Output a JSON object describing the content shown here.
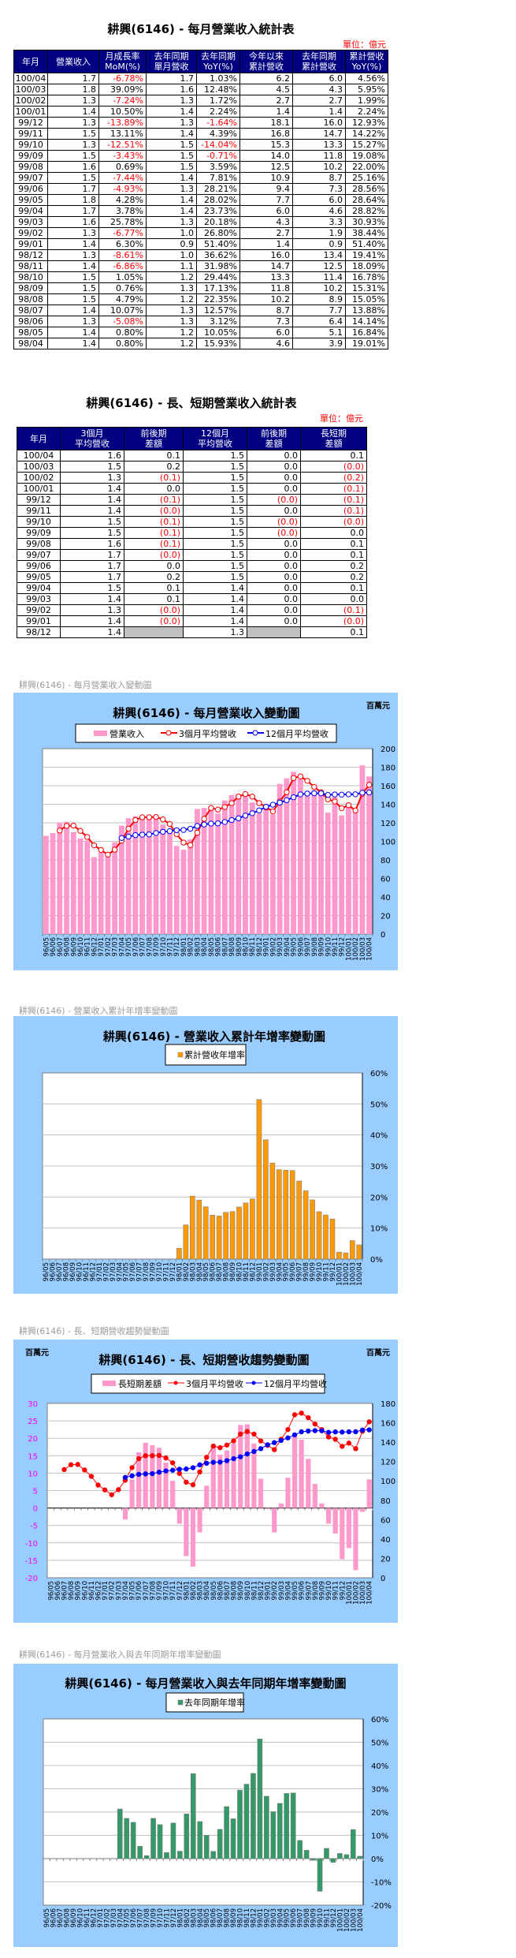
{
  "table1": {
    "title": "耕興(6146) - 每月營業收入統計表",
    "unit": "單位：億元",
    "headers": [
      [
        "年月",
        ""
      ],
      [
        "營業收入",
        ""
      ],
      [
        "月成長率",
        "MoM(%)"
      ],
      [
        "去年同期",
        "單月營收"
      ],
      [
        "去年同期",
        "YoY(%)"
      ],
      [
        "今年以來",
        "累計營收"
      ],
      [
        "去年同期",
        "累計營收"
      ],
      [
        "累計營收",
        "YoY(%)"
      ]
    ],
    "rows": [
      [
        "100/04",
        "1.7",
        "-6.78%",
        "1.7",
        "1.03%",
        "6.2",
        "6.0",
        "4.56%"
      ],
      [
        "100/03",
        "1.8",
        "39.09%",
        "1.6",
        "12.48%",
        "4.5",
        "4.3",
        "5.95%"
      ],
      [
        "100/02",
        "1.3",
        "-7.24%",
        "1.3",
        "1.72%",
        "2.7",
        "2.7",
        "1.99%"
      ],
      [
        "100/01",
        "1.4",
        "10.50%",
        "1.4",
        "2.24%",
        "1.4",
        "1.4",
        "2.24%"
      ],
      [
        "99/12",
        "1.3",
        "-13.89%",
        "1.3",
        "-1.64%",
        "18.1",
        "16.0",
        "12.93%"
      ],
      [
        "99/11",
        "1.5",
        "13.11%",
        "1.4",
        "4.39%",
        "16.8",
        "14.7",
        "14.22%"
      ],
      [
        "99/10",
        "1.3",
        "-12.51%",
        "1.5",
        "-14.04%",
        "15.3",
        "13.3",
        "15.27%"
      ],
      [
        "99/09",
        "1.5",
        "-3.43%",
        "1.5",
        "-0.71%",
        "14.0",
        "11.8",
        "19.08%"
      ],
      [
        "99/08",
        "1.6",
        "0.69%",
        "1.5",
        "3.59%",
        "12.5",
        "10.2",
        "22.00%"
      ],
      [
        "99/07",
        "1.5",
        "-7.44%",
        "1.4",
        "7.81%",
        "10.9",
        "8.7",
        "25.16%"
      ],
      [
        "99/06",
        "1.7",
        "-4.93%",
        "1.3",
        "28.21%",
        "9.4",
        "7.3",
        "28.56%"
      ],
      [
        "99/05",
        "1.8",
        "4.28%",
        "1.4",
        "28.02%",
        "7.7",
        "6.0",
        "28.64%"
      ],
      [
        "99/04",
        "1.7",
        "3.78%",
        "1.4",
        "23.73%",
        "6.0",
        "4.6",
        "28.82%"
      ],
      [
        "99/03",
        "1.6",
        "25.78%",
        "1.3",
        "20.18%",
        "4.3",
        "3.3",
        "30.93%"
      ],
      [
        "99/02",
        "1.3",
        "-6.77%",
        "1.0",
        "26.80%",
        "2.7",
        "1.9",
        "38.44%"
      ],
      [
        "99/01",
        "1.4",
        "6.30%",
        "0.9",
        "51.40%",
        "1.4",
        "0.9",
        "51.40%"
      ],
      [
        "98/12",
        "1.3",
        "-8.61%",
        "1.0",
        "36.62%",
        "16.0",
        "13.4",
        "19.41%"
      ],
      [
        "98/11",
        "1.4",
        "-6.86%",
        "1.1",
        "31.98%",
        "14.7",
        "12.5",
        "18.09%"
      ],
      [
        "98/10",
        "1.5",
        "1.05%",
        "1.2",
        "29.44%",
        "13.3",
        "11.4",
        "16.78%"
      ],
      [
        "98/09",
        "1.5",
        "0.76%",
        "1.3",
        "17.13%",
        "11.8",
        "10.2",
        "15.31%"
      ],
      [
        "98/08",
        "1.5",
        "4.79%",
        "1.2",
        "22.35%",
        "10.2",
        "8.9",
        "15.05%"
      ],
      [
        "98/07",
        "1.4",
        "10.07%",
        "1.3",
        "12.57%",
        "8.7",
        "7.7",
        "13.88%"
      ],
      [
        "98/06",
        "1.3",
        "-5.08%",
        "1.3",
        "3.12%",
        "7.3",
        "6.4",
        "14.14%"
      ],
      [
        "98/05",
        "1.4",
        "0.80%",
        "1.2",
        "10.05%",
        "6.0",
        "5.1",
        "16.84%"
      ],
      [
        "98/04",
        "1.4",
        "0.80%",
        "1.2",
        "15.93%",
        "4.6",
        "3.9",
        "19.01%"
      ]
    ]
  },
  "table2": {
    "title": "耕興(6146) - 長、短期營業收入統計表",
    "unit": "單位：億元",
    "headers": [
      [
        "年月",
        ""
      ],
      [
        "3個月",
        "平均營收"
      ],
      [
        "前後期",
        "差額"
      ],
      [
        "12個月",
        "平均營收"
      ],
      [
        "前後期",
        "差額"
      ],
      [
        "長短期",
        "差額"
      ]
    ],
    "rows": [
      [
        "100/04",
        "1.6",
        "0.1",
        "1.5",
        "0.0",
        "0.1"
      ],
      [
        "100/03",
        "1.5",
        "0.2",
        "1.5",
        "0.0",
        "(0.0)"
      ],
      [
        "100/02",
        "1.3",
        "(0.1)",
        "1.5",
        "0.0",
        "(0.2)"
      ],
      [
        "100/01",
        "1.4",
        "0.0",
        "1.5",
        "0.0",
        "(0.1)"
      ],
      [
        "99/12",
        "1.4",
        "(0.1)",
        "1.5",
        "(0.0)",
        "(0.1)"
      ],
      [
        "99/11",
        "1.4",
        "(0.0)",
        "1.5",
        "0.0",
        "(0.1)"
      ],
      [
        "99/10",
        "1.5",
        "(0.1)",
        "1.5",
        "(0.0)",
        "(0.0)"
      ],
      [
        "99/09",
        "1.5",
        "(0.1)",
        "1.5",
        "(0.0)",
        "0.0"
      ],
      [
        "99/08",
        "1.6",
        "(0.1)",
        "1.5",
        "0.0",
        "0.1"
      ],
      [
        "99/07",
        "1.7",
        "(0.0)",
        "1.5",
        "0.0",
        "0.1"
      ],
      [
        "99/06",
        "1.7",
        "0.0",
        "1.5",
        "0.0",
        "0.2"
      ],
      [
        "99/05",
        "1.7",
        "0.2",
        "1.5",
        "0.0",
        "0.2"
      ],
      [
        "99/04",
        "1.5",
        "0.1",
        "1.4",
        "0.0",
        "0.1"
      ],
      [
        "99/03",
        "1.4",
        "0.1",
        "1.4",
        "0.0",
        "0.0"
      ],
      [
        "99/02",
        "1.3",
        "(0.0)",
        "1.4",
        "0.0",
        "(0.1)"
      ],
      [
        "99/01",
        "1.4",
        "(0.0)",
        "1.4",
        "0.0",
        "(0.0)"
      ],
      [
        "98/12",
        "1.4",
        "",
        "1.3",
        "",
        "0.1"
      ]
    ]
  },
  "captions": [
    "耕興(6146) - 每月營業收入變動圖",
    "耕興(6146) -  營業收入累計年增率變動圖",
    "耕興(6146) -  長、短期營收趨勢變動圖",
    "耕興(6146) -  每月營業收入與去年同期年增率變動圖"
  ],
  "colors": {
    "header_bg": "#000080",
    "negative": "#ff0000",
    "panel_bg": "#99ccff"
  },
  "chart_data": [
    {
      "type": "bar+line",
      "title": "耕興(6146) - 每月營業收入變動圖",
      "unit_right": "百萬元",
      "categories": [
        "96/05",
        "96/06",
        "96/07",
        "96/08",
        "96/09",
        "96/10",
        "96/11",
        "96/12",
        "97/01",
        "97/02",
        "97/03",
        "97/04",
        "97/05",
        "97/06",
        "97/07",
        "97/08",
        "97/09",
        "97/10",
        "97/11",
        "97/12",
        "98/01",
        "98/02",
        "98/03",
        "98/04",
        "98/05",
        "98/06",
        "98/07",
        "98/08",
        "98/09",
        "98/10",
        "98/11",
        "98/12",
        "99/01",
        "99/02",
        "99/03",
        "99/04",
        "99/05",
        "99/06",
        "99/07",
        "99/08",
        "99/09",
        "99/10",
        "99/11",
        "99/12",
        "100/01",
        "100/02",
        "100/03",
        "100/04"
      ],
      "y_right": {
        "min": 0,
        "max": 200,
        "step": 20,
        "format": "number"
      },
      "grid": true,
      "legend": "top",
      "series": [
        {
          "name": "營業收入",
          "kind": "bar",
          "axis": "right",
          "color": "#ff99cc",
          "values": [
            106,
            109,
            120,
            121,
            110,
            103,
            101,
            83,
            88,
            86,
            99,
            117,
            125,
            127,
            126,
            125,
            128,
            118,
            110,
            95,
            91,
            102,
            135,
            136,
            137,
            130,
            144,
            150,
            151,
            152,
            142,
            130,
            138,
            129,
            162,
            168,
            175,
            167,
            154,
            155,
            150,
            131,
            148,
            128,
            141,
            131,
            182,
            170
          ]
        },
        {
          "name": "3個月平均營收",
          "kind": "line",
          "axis": "right",
          "color": "#ff0000",
          "marker": "hollow",
          "values": [
            null,
            null,
            111.7,
            116.7,
            117,
            111.3,
            104.7,
            95.7,
            90.7,
            85.7,
            91,
            100.7,
            113.7,
            123,
            126,
            126,
            126.3,
            123.7,
            118.7,
            107.7,
            98.7,
            96,
            109.3,
            124.3,
            136,
            134.3,
            137,
            141.3,
            148.3,
            151,
            148.3,
            141.3,
            136.7,
            132.3,
            143,
            153,
            168.3,
            170,
            165.3,
            158.7,
            153,
            145.3,
            143,
            135.7,
            139,
            133.3,
            151.3,
            161
          ]
        },
        {
          "name": "12個月平均營收",
          "kind": "line",
          "axis": "right",
          "color": "#0000ff",
          "marker": "hollow",
          "values": [
            null,
            null,
            null,
            null,
            null,
            null,
            null,
            null,
            null,
            null,
            null,
            103.6,
            105.2,
            106.7,
            107.2,
            107.5,
            109,
            110.3,
            111,
            112,
            112.3,
            113.6,
            116.6,
            118.2,
            119.2,
            119.4,
            120.9,
            123,
            124.9,
            127.8,
            130.4,
            133.3,
            137.3,
            139.5,
            141.8,
            144.4,
            147.6,
            150.7,
            151.5,
            151.9,
            151.8,
            150.1,
            150.6,
            150.4,
            150.7,
            150.8,
            152.5,
            152.7
          ]
        }
      ]
    },
    {
      "type": "bar",
      "title": "耕興(6146) -  營業收入累計年增率變動圖",
      "categories": [
        "96/05",
        "96/06",
        "96/07",
        "96/08",
        "96/09",
        "96/10",
        "96/11",
        "96/12",
        "97/01",
        "97/02",
        "97/03",
        "97/04",
        "97/05",
        "97/06",
        "97/07",
        "97/08",
        "97/09",
        "97/10",
        "97/11",
        "97/12",
        "98/01",
        "98/02",
        "98/03",
        "98/04",
        "98/05",
        "98/06",
        "98/07",
        "98/08",
        "98/09",
        "98/10",
        "98/11",
        "98/12",
        "99/01",
        "99/02",
        "99/03",
        "99/04",
        "99/05",
        "99/06",
        "99/07",
        "99/08",
        "99/09",
        "99/10",
        "99/11",
        "99/12",
        "100/01",
        "100/02",
        "100/03",
        "100/04"
      ],
      "y_right": {
        "min": 0,
        "max": 60,
        "step": 10,
        "format": "percent"
      },
      "grid": true,
      "legend": "top",
      "series": [
        {
          "name": "累計營收年增率",
          "kind": "bar",
          "axis": "right",
          "color": "#ff9900",
          "values": [
            null,
            null,
            null,
            null,
            null,
            null,
            null,
            null,
            null,
            null,
            null,
            null,
            null,
            null,
            null,
            null,
            null,
            null,
            null,
            null,
            3.5,
            11,
            20.3,
            19.01,
            16.84,
            14.14,
            13.88,
            15.05,
            15.31,
            16.78,
            18.09,
            19.41,
            51.4,
            38.44,
            30.93,
            28.82,
            28.64,
            28.56,
            25.16,
            22.0,
            19.08,
            15.27,
            14.22,
            12.93,
            2.24,
            1.99,
            5.95,
            4.56
          ]
        }
      ]
    },
    {
      "type": "bar+line",
      "title": "耕興(6146) -  長、短期營收趨勢變動圖",
      "unit_left": "百萬元",
      "unit_right": "百萬元",
      "categories": [
        "96/05",
        "96/06",
        "96/07",
        "96/08",
        "96/09",
        "96/10",
        "96/11",
        "96/12",
        "97/01",
        "97/02",
        "97/03",
        "97/04",
        "97/05",
        "97/06",
        "97/07",
        "97/08",
        "97/09",
        "97/10",
        "97/11",
        "97/12",
        "98/01",
        "98/02",
        "98/03",
        "98/04",
        "98/05",
        "98/06",
        "98/07",
        "98/08",
        "98/09",
        "98/10",
        "98/11",
        "98/12",
        "99/01",
        "99/02",
        "99/03",
        "99/04",
        "99/05",
        "99/06",
        "99/07",
        "99/08",
        "99/09",
        "99/10",
        "99/11",
        "99/12",
        "100/01",
        "100/02",
        "100/03",
        "100/04"
      ],
      "y_left": {
        "min": -20,
        "max": 30,
        "step": 5,
        "format": "number",
        "color": "#ff00ff"
      },
      "y_right": {
        "min": 0,
        "max": 180,
        "step": 20,
        "format": "number"
      },
      "grid": true,
      "legend": "top",
      "series": [
        {
          "name": "長短期差額",
          "kind": "bar",
          "axis": "left",
          "color": "#ff99cc",
          "values": [
            null,
            null,
            null,
            null,
            null,
            null,
            null,
            null,
            null,
            null,
            null,
            -3.3,
            8.2,
            16,
            18.7,
            18,
            17.3,
            13,
            7.8,
            -4.5,
            -13.8,
            -16.8,
            -7,
            6.4,
            17.7,
            15.3,
            16.5,
            18.5,
            23.8,
            24,
            18.5,
            8.4,
            -0.3,
            -7,
            1.3,
            8.7,
            20.8,
            19.6,
            14.1,
            6.9,
            1.3,
            -4.5,
            -7.3,
            -14.7,
            -11.5,
            -17.8,
            -1.1,
            8.2
          ]
        },
        {
          "name": "3個月平均營收",
          "kind": "line",
          "axis": "right",
          "color": "#ff0000",
          "marker": "filled",
          "values": [
            null,
            null,
            111.7,
            116.7,
            117,
            111.3,
            104.7,
            95.7,
            90.7,
            85.7,
            91,
            100.7,
            113.7,
            123,
            126,
            126,
            126.3,
            123.7,
            118.7,
            107.7,
            98.7,
            96,
            109.3,
            124.3,
            136,
            134.3,
            137,
            141.3,
            148.3,
            151,
            148.3,
            141.3,
            136.7,
            132.3,
            143,
            153,
            168.3,
            170,
            165.3,
            158.7,
            153,
            145.3,
            143,
            135.7,
            139,
            133.3,
            151.3,
            161
          ]
        },
        {
          "name": "12個月平均營收",
          "kind": "line",
          "axis": "right",
          "color": "#0000ff",
          "marker": "filled",
          "values": [
            null,
            null,
            null,
            null,
            null,
            null,
            null,
            null,
            null,
            null,
            null,
            103.6,
            105.2,
            106.7,
            107.2,
            107.5,
            109,
            110.3,
            111,
            112,
            112.3,
            113.6,
            116.6,
            118.2,
            119.2,
            119.4,
            120.9,
            123,
            124.9,
            127.8,
            130.4,
            133.3,
            137.3,
            139.5,
            141.8,
            144.4,
            147.6,
            150.7,
            151.5,
            151.9,
            151.8,
            150.1,
            150.6,
            150.4,
            150.7,
            150.8,
            152.5,
            152.7
          ]
        }
      ]
    },
    {
      "type": "bar",
      "title": "耕興(6146) -  每月營業收入與去年同期年增率變動圖",
      "categories": [
        "96/05",
        "96/06",
        "96/07",
        "96/08",
        "96/09",
        "96/10",
        "96/11",
        "96/12",
        "97/01",
        "97/02",
        "97/03",
        "97/04",
        "97/05",
        "97/06",
        "97/07",
        "97/08",
        "97/09",
        "97/10",
        "97/11",
        "97/12",
        "98/01",
        "98/02",
        "98/03",
        "98/04",
        "98/05",
        "98/06",
        "98/07",
        "98/08",
        "98/09",
        "98/10",
        "98/11",
        "98/12",
        "99/01",
        "99/02",
        "99/03",
        "99/04",
        "99/05",
        "99/06",
        "99/07",
        "99/08",
        "99/09",
        "99/10",
        "99/11",
        "99/12",
        "100/01",
        "100/02",
        "100/03",
        "100/04"
      ],
      "y_right": {
        "min": -20,
        "max": 60,
        "step": 10,
        "format": "percent"
      },
      "grid": true,
      "legend": "top",
      "series": [
        {
          "name": "去年同期年增率",
          "kind": "bar",
          "axis": "right",
          "color": "#339966",
          "values": [
            null,
            null,
            null,
            null,
            null,
            null,
            null,
            null,
            null,
            null,
            null,
            21.3,
            17.3,
            15.6,
            5.3,
            1.3,
            17.3,
            14.6,
            2.6,
            15.3,
            3.2,
            19.2,
            36.5,
            15.93,
            10.05,
            3.12,
            12.57,
            22.35,
            17.13,
            29.44,
            31.98,
            36.62,
            51.4,
            26.8,
            20.18,
            23.73,
            28.02,
            28.21,
            7.81,
            3.59,
            -0.71,
            -14.04,
            4.39,
            -1.64,
            2.24,
            1.72,
            12.48,
            1.03
          ]
        }
      ]
    }
  ]
}
